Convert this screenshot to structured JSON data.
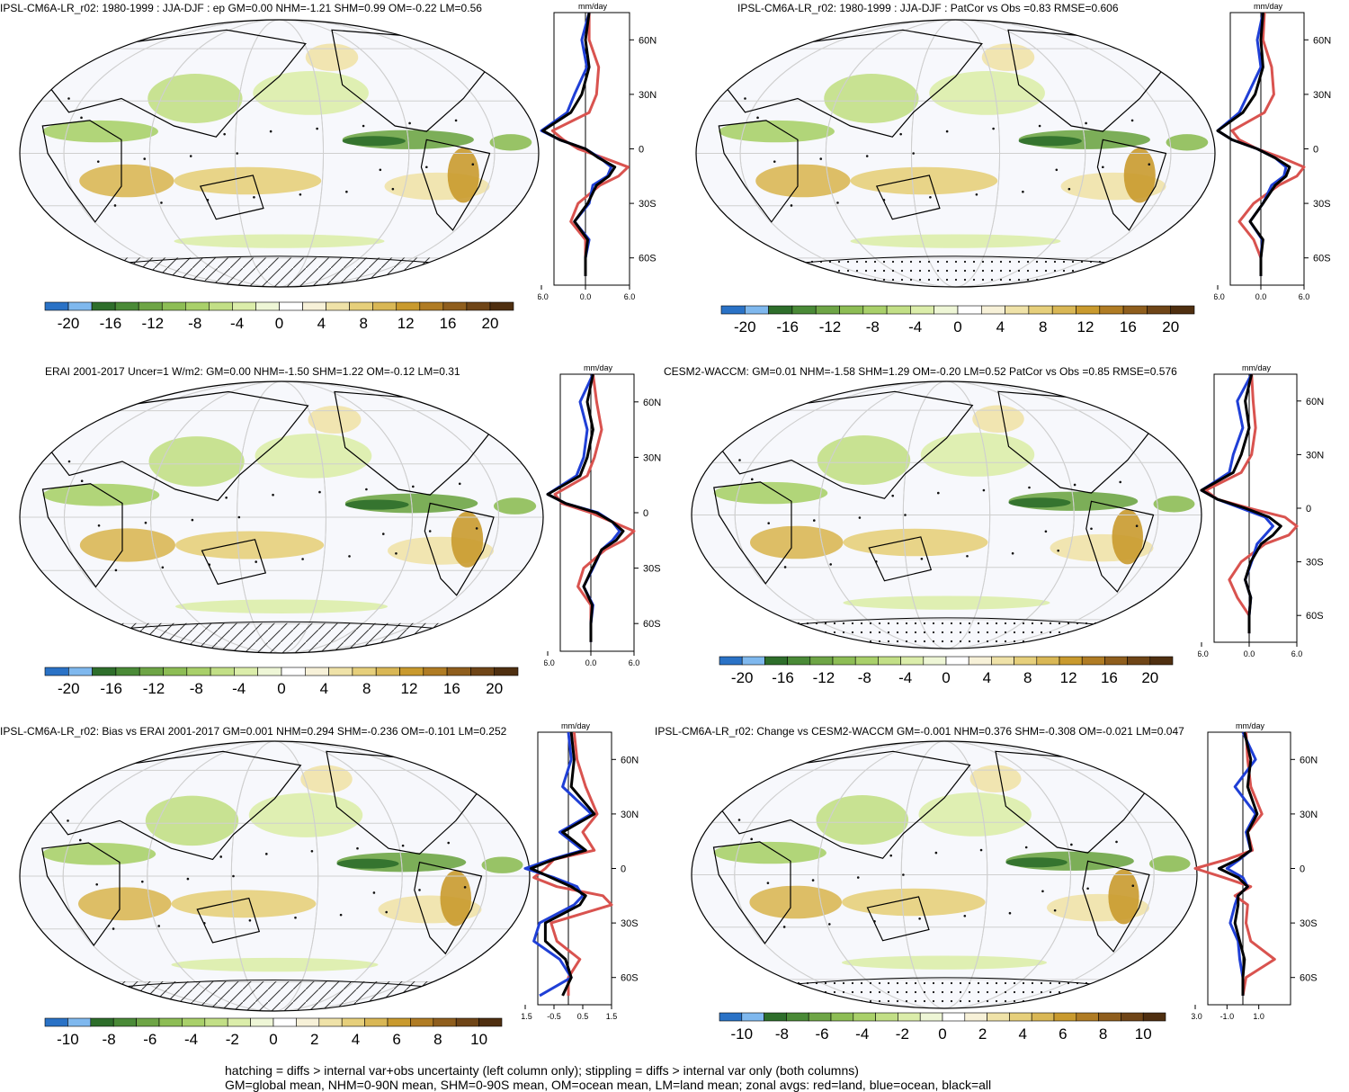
{
  "colors": {
    "land": "#d9534f",
    "ocean": "#1f3fd6",
    "all": "#000000",
    "zero_line": "#000000"
  },
  "palette_precip": [
    "#2a72c6",
    "#7fb8ee",
    "#2e6e2b",
    "#4a8a37",
    "#6ea546",
    "#8dbd55",
    "#a9d06a",
    "#c2df86",
    "#dbedaa",
    "#eef6d6",
    "#ffffff",
    "#f7f1d8",
    "#efe2a8",
    "#e6cf7b",
    "#d9b755",
    "#c99a2e",
    "#b07c24",
    "#8f5e1d",
    "#6f4517",
    "#4f2f10"
  ],
  "panels": [
    {
      "id": "p1",
      "title": "IPSL-CM6A-LR_r02: 1980-1999 : JJA-DJF : ep GM=0.00 NHM=-1.21 SHM=0.99 OM=-0.22 LM=0.56",
      "overlay": "hatch+stipple",
      "colorbar": {
        "ticks": [
          "-20",
          "-16",
          "-12",
          "-8",
          "-4",
          "0",
          "4",
          "8",
          "12",
          "16",
          "20"
        ]
      },
      "zonal": {
        "unit": "mm/day",
        "x_ticks": [
          "-6.0",
          "0.0",
          "6.0"
        ],
        "y_ticks": [
          "60N",
          "30N",
          "0",
          "30S",
          "60S"
        ]
      }
    },
    {
      "id": "p2",
      "title": "IPSL-CM6A-LR_r02: 1980-1999 : JJA-DJF : PatCor vs Obs =0.83 RMSE=0.606",
      "overlay": "stipple",
      "colorbar": {
        "ticks": [
          "-20",
          "-16",
          "-12",
          "-8",
          "-4",
          "0",
          "4",
          "8",
          "12",
          "16",
          "20"
        ]
      },
      "zonal": {
        "unit": "mm/day",
        "x_ticks": [
          "-6.0",
          "0.0",
          "6.0"
        ],
        "y_ticks": [
          "60N",
          "30N",
          "0",
          "30S",
          "60S"
        ]
      }
    },
    {
      "id": "p3",
      "title": "ERAI 2001-2017 Uncer=1 W/m2: GM=0.00 NHM=-1.50 SHM=1.22 OM=-0.12 LM=0.31",
      "overlay": "hatch",
      "colorbar": {
        "ticks": [
          "-20",
          "-16",
          "-12",
          "-8",
          "-4",
          "0",
          "4",
          "8",
          "12",
          "16",
          "20"
        ]
      },
      "zonal": {
        "unit": "mm/day",
        "x_ticks": [
          "-6.0",
          "0.0",
          "6.0"
        ],
        "y_ticks": [
          "60N",
          "30N",
          "0",
          "30S",
          "60S"
        ]
      }
    },
    {
      "id": "p4",
      "title": "CESM2-WACCM: GM=0.01 NHM=-1.58 SHM=1.29 OM=-0.20 LM=0.52 PatCor vs Obs =0.85 RMSE=0.576",
      "overlay": "stipple",
      "colorbar": {
        "ticks": [
          "-20",
          "-16",
          "-12",
          "-8",
          "-4",
          "0",
          "4",
          "8",
          "12",
          "16",
          "20"
        ]
      },
      "zonal": {
        "unit": "mm/day",
        "x_ticks": [
          "-6.0",
          "0.0",
          "6.0"
        ],
        "y_ticks": [
          "60N",
          "30N",
          "0",
          "30S",
          "60S"
        ]
      }
    },
    {
      "id": "p5",
      "title": "IPSL-CM6A-LR_r02: Bias vs ERAI 2001-2017 GM=0.001 NHM=0.294 SHM=-0.236 OM=-0.101 LM=0.252",
      "overlay": "hatch",
      "colorbar": {
        "ticks": [
          "-10",
          "-8",
          "-6",
          "-4",
          "-2",
          "0",
          "2",
          "4",
          "6",
          "8",
          "10"
        ]
      },
      "zonal": {
        "unit": "mm/day",
        "x_ticks": [
          "-1.5",
          "-0.5",
          "0.5",
          "1.5"
        ],
        "y_ticks": [
          "60N",
          "30N",
          "0",
          "30S",
          "60S"
        ]
      }
    },
    {
      "id": "p6",
      "title": "IPSL-CM6A-LR_r02: Change vs CESM2-WACCM GM=-0.001 NHM=0.376 SHM=-0.308 OM=-0.021 LM=0.047",
      "overlay": "stipple",
      "colorbar": {
        "ticks": [
          "-10",
          "-8",
          "-6",
          "-4",
          "-2",
          "0",
          "2",
          "4",
          "6",
          "8",
          "10"
        ]
      },
      "zonal": {
        "unit": "mm/day",
        "x_ticks": [
          "-3.0",
          "-1.0",
          "1.0"
        ],
        "y_ticks": [
          "60N",
          "30N",
          "0",
          "30S",
          "60S"
        ]
      }
    }
  ],
  "footer": {
    "line1": "hatching = diffs > internal var+obs uncertainty (left column only); stippling = diffs > internal var only (both columns)",
    "line2": "GM=global mean, NHM=0-90N mean, SHM=0-90S mean, OM=ocean mean, LM=land mean; zonal avgs: red=land, blue=ocean, black=all"
  },
  "chart_data": [
    {
      "type": "line",
      "panel": "p1",
      "xlabel": "mm/day",
      "x_range": [
        -6,
        6
      ],
      "y_range_lat": [
        -75,
        75
      ],
      "lat": [
        75,
        60,
        45,
        30,
        20,
        10,
        5,
        0,
        -5,
        -10,
        -15,
        -20,
        -30,
        -40,
        -50,
        -60,
        -70
      ],
      "series": [
        {
          "name": "red=land",
          "values": [
            0.5,
            0.5,
            1.8,
            1.5,
            0.5,
            -4.5,
            -3,
            -1,
            2.5,
            5.8,
            4.5,
            2,
            -1,
            -2,
            0,
            0,
            0
          ]
        },
        {
          "name": "blue=ocean",
          "values": [
            0.5,
            -0.5,
            0.2,
            -1.5,
            -2.5,
            -6.3,
            -3.5,
            0,
            2,
            3.5,
            3,
            1,
            0.5,
            -1.5,
            0.5,
            0,
            0
          ]
        },
        {
          "name": "black=all",
          "values": [
            0.5,
            0,
            0.5,
            -0.5,
            -2,
            -5.8,
            -3.5,
            0,
            1.8,
            4,
            3.2,
            1.5,
            0.3,
            -1.5,
            0.3,
            0,
            0
          ]
        }
      ]
    },
    {
      "type": "line",
      "panel": "p2",
      "xlabel": "mm/day",
      "x_range": [
        -6,
        6
      ],
      "y_range_lat": [
        -75,
        75
      ],
      "lat": [
        75,
        60,
        45,
        30,
        20,
        10,
        5,
        0,
        -5,
        -10,
        -15,
        -20,
        -30,
        -40,
        -50,
        -60,
        -70
      ],
      "series": [
        {
          "name": "red=land",
          "values": [
            0.5,
            0.3,
            1.5,
            1.8,
            0.5,
            -4,
            -3,
            -0.5,
            3,
            6.5,
            5,
            2.5,
            -1,
            -3,
            -1,
            0,
            0
          ]
        },
        {
          "name": "blue=ocean",
          "values": [
            0.3,
            -0.5,
            0,
            -1.8,
            -3,
            -6.5,
            -4,
            -0.5,
            2,
            3.5,
            3.2,
            1.5,
            0.3,
            -1.5,
            0.2,
            0,
            0
          ]
        },
        {
          "name": "black=all",
          "values": [
            0.3,
            0,
            0.3,
            -0.8,
            -2.5,
            -6,
            -4,
            -0.5,
            2,
            4,
            3.5,
            2,
            0.3,
            -1.5,
            0.3,
            0,
            0
          ]
        }
      ]
    },
    {
      "type": "line",
      "panel": "p3",
      "xlabel": "mm/day",
      "x_range": [
        -6,
        6
      ],
      "y_range_lat": [
        -75,
        75
      ],
      "lat": [
        75,
        60,
        45,
        30,
        20,
        10,
        5,
        0,
        -5,
        -10,
        -15,
        -20,
        -30,
        -40,
        -50,
        -60,
        -70
      ],
      "series": [
        {
          "name": "red=land",
          "values": [
            0.3,
            0.8,
            1.5,
            0.5,
            -0.5,
            -5,
            -4,
            0,
            3,
            6,
            4.5,
            2,
            -1,
            -1.8,
            0,
            0,
            0
          ]
        },
        {
          "name": "blue=ocean",
          "values": [
            0.3,
            -1.5,
            -0.5,
            -1,
            -2,
            -6.5,
            -3.5,
            1,
            3,
            4,
            3,
            1.5,
            0.3,
            -1,
            0.3,
            0,
            0
          ]
        },
        {
          "name": "black=all",
          "values": [
            0.3,
            -0.5,
            0.3,
            -0.5,
            -1.5,
            -6,
            -3.5,
            0.8,
            3,
            4.5,
            3.5,
            1.5,
            0.2,
            -1,
            0.2,
            0,
            0
          ]
        }
      ]
    },
    {
      "type": "line",
      "panel": "p4",
      "xlabel": "mm/day",
      "x_range": [
        -6,
        6
      ],
      "y_range_lat": [
        -75,
        75
      ],
      "lat": [
        75,
        60,
        45,
        30,
        20,
        10,
        5,
        0,
        -5,
        -10,
        -15,
        -20,
        -30,
        -40,
        -50,
        -60,
        -70
      ],
      "series": [
        {
          "name": "red=land",
          "values": [
            0.3,
            0.5,
            0.8,
            0.3,
            -1,
            -5.5,
            -4,
            0,
            4.5,
            7.5,
            5,
            2,
            -1,
            -2.5,
            -1.5,
            0,
            0
          ]
        },
        {
          "name": "blue=ocean",
          "values": [
            0.3,
            -1.5,
            -0.8,
            -2,
            -2.5,
            -7,
            -4,
            -1,
            2,
            3,
            2,
            1,
            0.3,
            -0.5,
            0.2,
            0,
            0
          ]
        },
        {
          "name": "black=all",
          "values": [
            0.3,
            -0.5,
            0,
            -1,
            -2,
            -6.5,
            -4,
            -0.5,
            2.5,
            4,
            3,
            1.5,
            0.2,
            -0.5,
            0.2,
            0,
            0
          ]
        }
      ]
    },
    {
      "type": "line",
      "panel": "p5",
      "xlabel": "mm/day",
      "x_range": [
        -1.5,
        1.5
      ],
      "y_range_lat": [
        -75,
        75
      ],
      "lat": [
        75,
        60,
        45,
        30,
        20,
        10,
        5,
        0,
        -5,
        -10,
        -15,
        -20,
        -30,
        -40,
        -50,
        -60,
        -70
      ],
      "series": [
        {
          "name": "red=land",
          "values": [
            0.2,
            0.3,
            0.6,
            1,
            0.5,
            0.9,
            -0.5,
            -0.8,
            -1.2,
            -0.4,
            1.2,
            1.6,
            -0.6,
            -0.4,
            0.4,
            0,
            0
          ]
        },
        {
          "name": "blue=ocean",
          "values": [
            0,
            0.1,
            -0.2,
            0.8,
            -0.3,
            0.5,
            -0.6,
            -1.6,
            -0.5,
            0.3,
            0.5,
            0.2,
            -1,
            -1.2,
            -0.3,
            0.1,
            -1
          ]
        },
        {
          "name": "black=all",
          "values": [
            0.1,
            0.2,
            0.1,
            0.9,
            -0.2,
            0.6,
            -0.5,
            -1.3,
            -0.6,
            0.1,
            0.6,
            0.4,
            -0.8,
            -0.8,
            -0.1,
            0.1,
            -0.2
          ]
        }
      ]
    },
    {
      "type": "line",
      "panel": "p6",
      "xlabel": "mm/day",
      "x_range": [
        -3,
        3
      ],
      "y_range_lat": [
        -75,
        75
      ],
      "lat": [
        75,
        60,
        45,
        30,
        20,
        10,
        5,
        0,
        -5,
        -10,
        -15,
        -20,
        -30,
        -40,
        -50,
        -60,
        -70
      ],
      "series": [
        {
          "name": "red=land",
          "values": [
            0.2,
            0.3,
            0.5,
            1.2,
            0.3,
            0.6,
            -1,
            -3.5,
            -1.2,
            0.5,
            -0.5,
            0.3,
            0.2,
            0.5,
            2,
            0.2,
            0
          ]
        },
        {
          "name": "blue=ocean",
          "values": [
            0,
            0.8,
            -0.5,
            0.8,
            0.2,
            0.5,
            -0.2,
            -1,
            0,
            0.3,
            -0.3,
            -0.5,
            -0.8,
            -0.3,
            -0.2,
            0,
            0
          ]
        },
        {
          "name": "black=all",
          "values": [
            0.1,
            0.5,
            0.3,
            0.9,
            0.3,
            0.5,
            -0.3,
            -1.5,
            -0.3,
            0.3,
            -0.3,
            -0.3,
            -0.5,
            -0.2,
            0.1,
            0,
            0
          ]
        }
      ]
    }
  ]
}
